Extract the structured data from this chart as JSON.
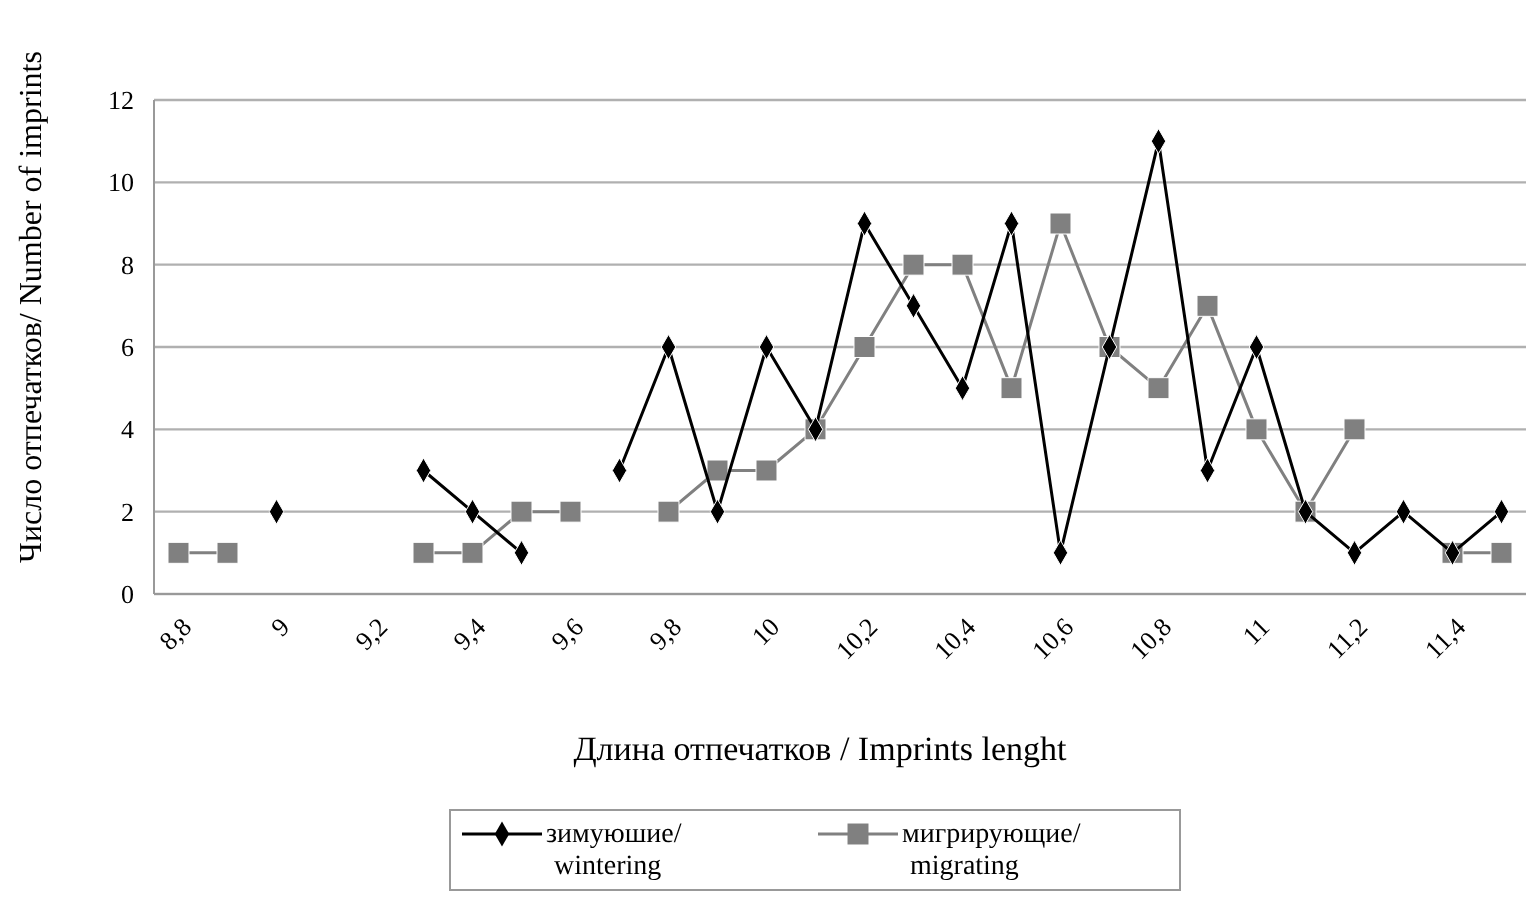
{
  "chart_data": {
    "type": "line",
    "xlabel": "Длина отпечатков / Imprints lenght",
    "ylabel": "Число отпечатков/ Number of imprints",
    "categories": [
      "8,8",
      null,
      "9",
      null,
      "9,2",
      null,
      "9,4",
      null,
      "9,6",
      null,
      "9,8",
      null,
      "10",
      null,
      "10,2",
      null,
      "10,4",
      null,
      "10,6",
      null,
      "10,8",
      null,
      "11",
      null,
      "11,2",
      null,
      "11,4",
      null
    ],
    "series": [
      {
        "name": "зимуюшие/ wintering",
        "color": "#000000",
        "marker": "diamond",
        "values": [
          null,
          null,
          2,
          null,
          null,
          3,
          2,
          1,
          null,
          3,
          6,
          2,
          6,
          4,
          9,
          7,
          5,
          9,
          1,
          6,
          11,
          3,
          6,
          2,
          1,
          2,
          1,
          2
        ]
      },
      {
        "name": "мигрирующие/ migrating",
        "color": "#808080",
        "marker": "square",
        "values": [
          1,
          1,
          null,
          null,
          null,
          1,
          1,
          2,
          2,
          null,
          2,
          3,
          3,
          4,
          6,
          8,
          8,
          5,
          9,
          6,
          5,
          7,
          4,
          2,
          4,
          null,
          1,
          1
        ]
      }
    ],
    "ylim": [
      0,
      12
    ],
    "yticks": [
      0,
      2,
      4,
      6,
      8,
      10,
      12
    ],
    "grid": "y",
    "legend": "bottom"
  }
}
